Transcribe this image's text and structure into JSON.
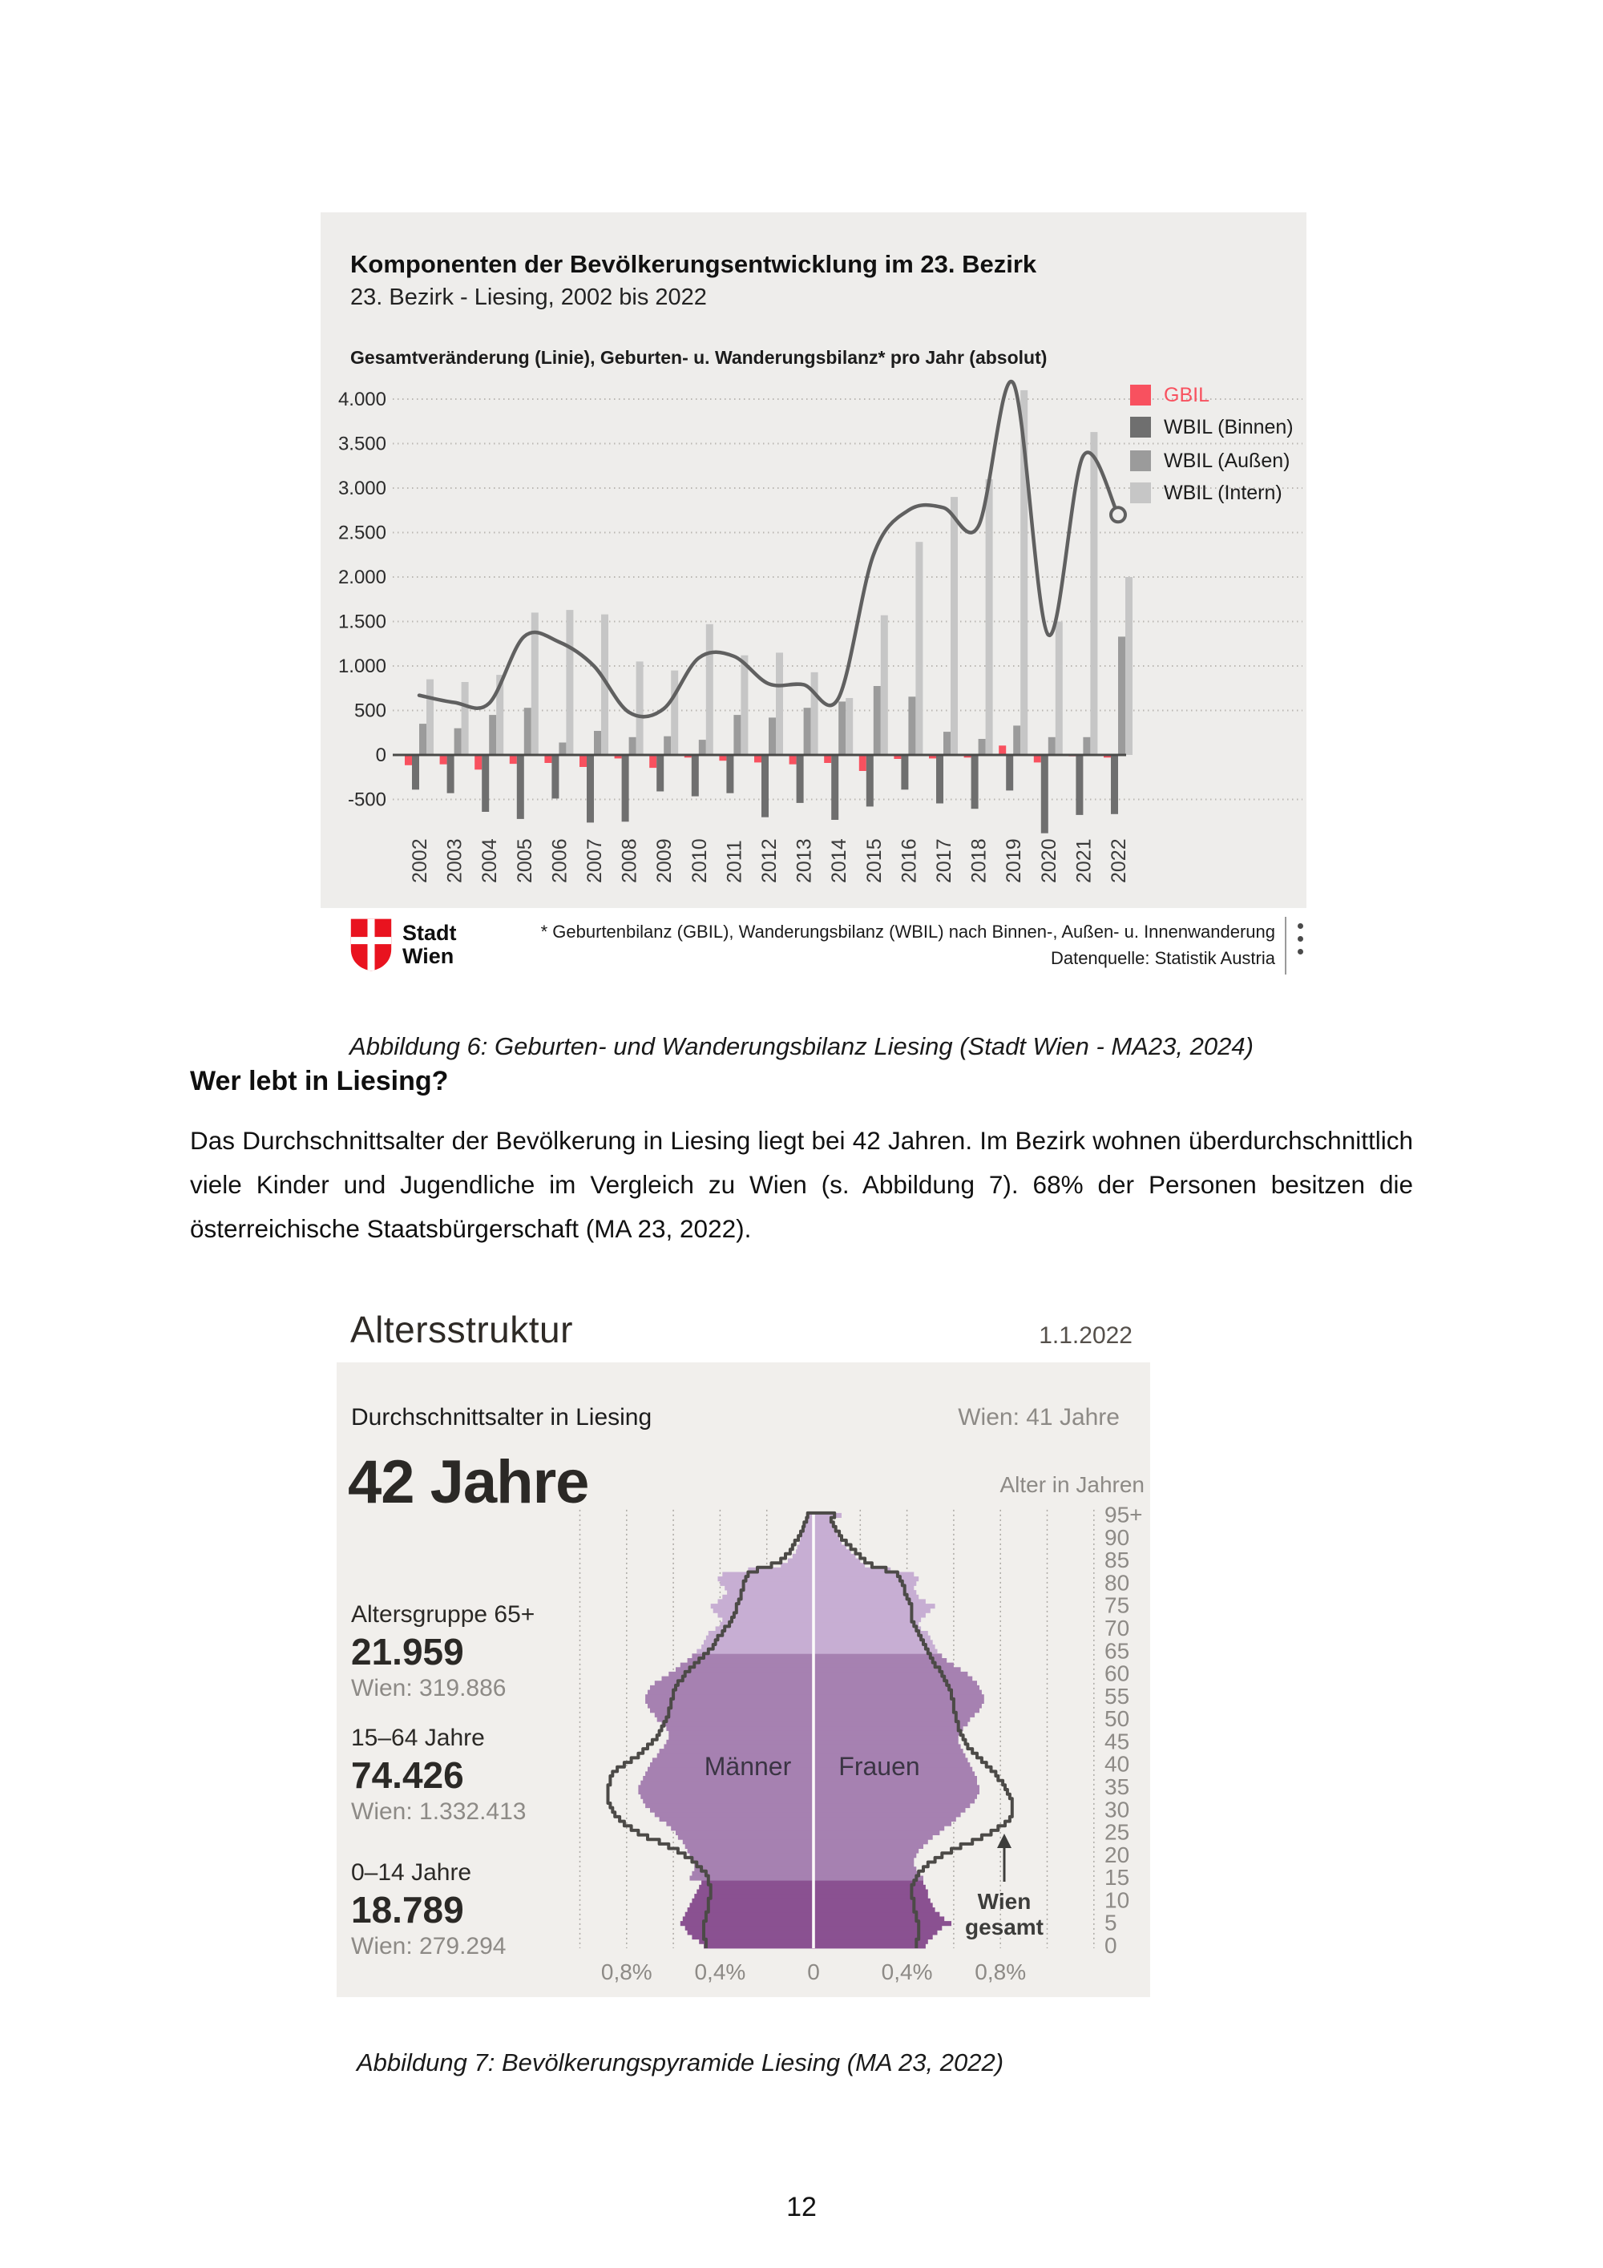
{
  "page": {
    "number": "12"
  },
  "colors": {
    "panel_bg": "#eeedeb",
    "figure_bg": "#f1efec",
    "accent_red": "#f8515f",
    "logo_red": "#e9131f",
    "axis_dark": "#4a4a48"
  },
  "figure6": {
    "title": "Komponenten der Bevölkerungsentwicklung im 23. Bezirk",
    "subtitle": "23. Bezirk - Liesing, 2002 bis 2022",
    "axis_note": "Gesamtveränderung (Linie), Geburten- u. Wanderungsbilanz* pro Jahr (absolut)",
    "footnote_line1": "* Geburtenbilanz (GBIL), Wanderungsbilanz (WBIL) nach Binnen-, Außen- u. Innenwanderung",
    "footnote_line2": "Datenquelle: Statistik Austria",
    "logo": {
      "line1": "Stadt",
      "line2": "Wien"
    },
    "caption": "Abbildung 6: Geburten- und Wanderungsbilanz Liesing (Stadt Wien - MA23, 2024)"
  },
  "section": {
    "heading": "Wer lebt in Liesing?",
    "paragraph": "Das Durchschnittsalter der Bevölkerung in Liesing liegt bei 42 Jahren. Im Bezirk wohnen überdurchschnittlich viele Kinder und Jugendliche im Vergleich zu Wien (s. Abbildung 7). 68% der Personen besitzen die österreichische Staatsbürgerschaft (MA 23, 2022)."
  },
  "figure7": {
    "title": "Altersstruktur",
    "date": "1.1.2022",
    "subtitle_left": "Durchschnittsalter in Liesing",
    "subtitle_right": "Wien: 41 Jahre",
    "big_value": "42 Jahre",
    "stats": [
      {
        "label": "Altersgruppe 65+",
        "value": "21.959",
        "wien": "Wien: 319.886"
      },
      {
        "label": "15–64 Jahre",
        "value": "74.426",
        "wien": "Wien: 1.332.413"
      },
      {
        "label": "0–14 Jahre",
        "value": "18.789",
        "wien": "Wien: 279.294"
      }
    ],
    "caption": "Abbildung 7: Bevölkerungspyramide Liesing (MA 23, 2022)"
  },
  "chart_data": [
    {
      "type": "bar",
      "title": "Komponenten der Bevölkerungsentwicklung im 23. Bezirk",
      "subtitle": "Gesamtveränderung (Linie), Geburten- u. Wanderungsbilanz pro Jahr (absolut)",
      "bg": "#eeedeb",
      "categories": [
        "2002",
        "2003",
        "2004",
        "2005",
        "2006",
        "2007",
        "2008",
        "2009",
        "2010",
        "2011",
        "2012",
        "2013",
        "2014",
        "2015",
        "2016",
        "2017",
        "2018",
        "2019",
        "2020",
        "2021",
        "2022"
      ],
      "series": [
        {
          "name": "GBIL",
          "type": "bar",
          "color": "#f8515f",
          "values": [
            -115,
            -105,
            -165,
            -100,
            -90,
            -135,
            -40,
            -145,
            -30,
            -65,
            -85,
            -105,
            -90,
            -180,
            -45,
            -40,
            -30,
            105,
            -85,
            -15,
            -30
          ]
        },
        {
          "name": "WBIL (Binnen)",
          "type": "bar",
          "color": "#6f6f6f",
          "values": [
            -390,
            -430,
            -640,
            -720,
            -490,
            -760,
            -750,
            -410,
            -465,
            -430,
            -700,
            -540,
            -730,
            -580,
            -390,
            -545,
            -605,
            -400,
            -880,
            -675,
            -665
          ]
        },
        {
          "name": "WBIL (Außen)",
          "type": "bar",
          "color": "#9b9b9b",
          "values": [
            350,
            300,
            450,
            530,
            140,
            270,
            200,
            210,
            170,
            450,
            420,
            530,
            600,
            775,
            655,
            260,
            180,
            330,
            200,
            200,
            1330
          ]
        },
        {
          "name": "WBIL (Intern)",
          "type": "bar",
          "color": "#c6c6c6",
          "values": [
            850,
            820,
            900,
            1600,
            1630,
            1580,
            1050,
            950,
            1470,
            1120,
            1150,
            930,
            640,
            1570,
            2395,
            2900,
            3100,
            4100,
            1500,
            3630,
            2000
          ]
        },
        {
          "name": "Gesamtveränderung (Linie)",
          "type": "line",
          "color": "#606060",
          "values": [
            670,
            590,
            580,
            1330,
            1270,
            1000,
            480,
            520,
            1090,
            1110,
            800,
            790,
            640,
            2250,
            2750,
            2780,
            2570,
            4180,
            1350,
            3360,
            2700
          ]
        }
      ],
      "ylim": [
        -900,
        4300
      ],
      "yticks": [
        {
          "value": 4000,
          "label": "4.000"
        },
        {
          "value": 3500,
          "label": "3.500"
        },
        {
          "value": 3000,
          "label": "3.000"
        },
        {
          "value": 2500,
          "label": "2.500"
        },
        {
          "value": 2000,
          "label": "2.000"
        },
        {
          "value": 1500,
          "label": "1.500"
        },
        {
          "value": 1000,
          "label": "1.000"
        },
        {
          "value": 500,
          "label": "500"
        },
        {
          "value": 0,
          "label": "0"
        },
        {
          "value": -500,
          "label": "-500"
        }
      ],
      "grid": "dotted",
      "legend_position": "right"
    },
    {
      "type": "population-pyramid",
      "title": "Altersstruktur",
      "age_axis_title": "Alter in Jahren",
      "male_label": "Männer",
      "female_label": "Frauen",
      "annotation_line1": "Wien",
      "annotation_line2": "gesamt",
      "age_tick_labels": [
        "95+",
        "90",
        "85",
        "80",
        "75",
        "70",
        "65",
        "60",
        "55",
        "50",
        "45",
        "40",
        "35",
        "30",
        "25",
        "20",
        "15",
        "10",
        "5",
        "0"
      ],
      "x_tick_values": [
        -0.8,
        -0.4,
        0,
        0.4,
        0.8
      ],
      "x_tick_labels": [
        "0,8%",
        "0,4%",
        "0",
        "0,4%",
        "0,8%"
      ],
      "unit": "percent of total population per single year of age",
      "colors": {
        "age_0_14": "#8a5191",
        "age_15_64": "#a681b1",
        "age_65plus": "#c7aed3",
        "wien_outline": "#4c4a47",
        "grid": "#aba8a3",
        "center_line": "#fbfaf9"
      },
      "liesing_men": [
        0.47,
        0.49,
        0.52,
        0.54,
        0.55,
        0.57,
        0.56,
        0.55,
        0.54,
        0.53,
        0.52,
        0.51,
        0.5,
        0.49,
        0.48,
        0.53,
        0.52,
        0.51,
        0.51,
        0.52,
        0.53,
        0.54,
        0.55,
        0.56,
        0.58,
        0.59,
        0.61,
        0.63,
        0.66,
        0.68,
        0.7,
        0.72,
        0.73,
        0.74,
        0.75,
        0.75,
        0.74,
        0.73,
        0.72,
        0.71,
        0.7,
        0.69,
        0.67,
        0.66,
        0.64,
        0.63,
        0.62,
        0.62,
        0.63,
        0.65,
        0.67,
        0.68,
        0.7,
        0.71,
        0.72,
        0.72,
        0.71,
        0.7,
        0.68,
        0.65,
        0.62,
        0.59,
        0.57,
        0.54,
        0.52,
        0.5,
        0.48,
        0.47,
        0.46,
        0.45,
        0.42,
        0.4,
        0.39,
        0.41,
        0.43,
        0.44,
        0.41,
        0.39,
        0.37,
        0.38,
        0.4,
        0.41,
        0.39,
        0.28,
        0.14,
        0.11,
        0.09,
        0.075,
        0.07,
        0.06,
        0.055,
        0.05,
        0.045,
        0.04,
        0.035,
        0.03
      ],
      "liesing_women": [
        0.48,
        0.49,
        0.51,
        0.53,
        0.55,
        0.59,
        0.56,
        0.54,
        0.52,
        0.51,
        0.5,
        0.49,
        0.49,
        0.48,
        0.47,
        0.47,
        0.45,
        0.44,
        0.43,
        0.43,
        0.44,
        0.45,
        0.47,
        0.49,
        0.51,
        0.54,
        0.56,
        0.59,
        0.61,
        0.63,
        0.65,
        0.67,
        0.69,
        0.7,
        0.71,
        0.71,
        0.7,
        0.7,
        0.69,
        0.68,
        0.67,
        0.66,
        0.65,
        0.64,
        0.63,
        0.62,
        0.62,
        0.63,
        0.64,
        0.66,
        0.67,
        0.69,
        0.71,
        0.72,
        0.73,
        0.73,
        0.72,
        0.71,
        0.7,
        0.68,
        0.66,
        0.63,
        0.6,
        0.57,
        0.55,
        0.53,
        0.52,
        0.51,
        0.5,
        0.49,
        0.46,
        0.45,
        0.46,
        0.48,
        0.5,
        0.52,
        0.48,
        0.45,
        0.44,
        0.43,
        0.44,
        0.45,
        0.43,
        0.33,
        0.22,
        0.2,
        0.18,
        0.16,
        0.14,
        0.12,
        0.11,
        0.1,
        0.09,
        0.08,
        0.07,
        0.12
      ],
      "wien_men": [
        0.46,
        0.46,
        0.47,
        0.47,
        0.47,
        0.47,
        0.46,
        0.46,
        0.45,
        0.45,
        0.45,
        0.44,
        0.44,
        0.44,
        0.45,
        0.45,
        0.46,
        0.48,
        0.5,
        0.52,
        0.55,
        0.58,
        0.62,
        0.66,
        0.71,
        0.75,
        0.78,
        0.81,
        0.83,
        0.85,
        0.86,
        0.87,
        0.88,
        0.88,
        0.88,
        0.88,
        0.87,
        0.87,
        0.86,
        0.84,
        0.81,
        0.78,
        0.75,
        0.73,
        0.71,
        0.69,
        0.67,
        0.66,
        0.65,
        0.64,
        0.63,
        0.62,
        0.62,
        0.61,
        0.61,
        0.6,
        0.6,
        0.59,
        0.58,
        0.56,
        0.55,
        0.53,
        0.51,
        0.49,
        0.47,
        0.45,
        0.43,
        0.42,
        0.41,
        0.39,
        0.38,
        0.36,
        0.35,
        0.34,
        0.33,
        0.33,
        0.32,
        0.31,
        0.31,
        0.3,
        0.3,
        0.29,
        0.28,
        0.24,
        0.18,
        0.14,
        0.12,
        0.1,
        0.09,
        0.08,
        0.065,
        0.055,
        0.045,
        0.04,
        0.03,
        0.025
      ],
      "wien_women": [
        0.44,
        0.44,
        0.45,
        0.45,
        0.45,
        0.45,
        0.44,
        0.44,
        0.43,
        0.43,
        0.43,
        0.42,
        0.42,
        0.42,
        0.43,
        0.44,
        0.45,
        0.47,
        0.49,
        0.52,
        0.55,
        0.59,
        0.63,
        0.68,
        0.72,
        0.76,
        0.79,
        0.82,
        0.84,
        0.85,
        0.85,
        0.85,
        0.85,
        0.84,
        0.83,
        0.82,
        0.81,
        0.79,
        0.78,
        0.76,
        0.74,
        0.72,
        0.7,
        0.68,
        0.66,
        0.65,
        0.64,
        0.63,
        0.62,
        0.62,
        0.61,
        0.61,
        0.6,
        0.6,
        0.6,
        0.59,
        0.59,
        0.58,
        0.57,
        0.56,
        0.55,
        0.54,
        0.52,
        0.51,
        0.5,
        0.49,
        0.48,
        0.47,
        0.46,
        0.45,
        0.44,
        0.43,
        0.42,
        0.42,
        0.42,
        0.42,
        0.41,
        0.4,
        0.39,
        0.39,
        0.38,
        0.37,
        0.36,
        0.31,
        0.25,
        0.22,
        0.2,
        0.18,
        0.16,
        0.14,
        0.12,
        0.11,
        0.095,
        0.085,
        0.075,
        0.09
      ]
    }
  ]
}
